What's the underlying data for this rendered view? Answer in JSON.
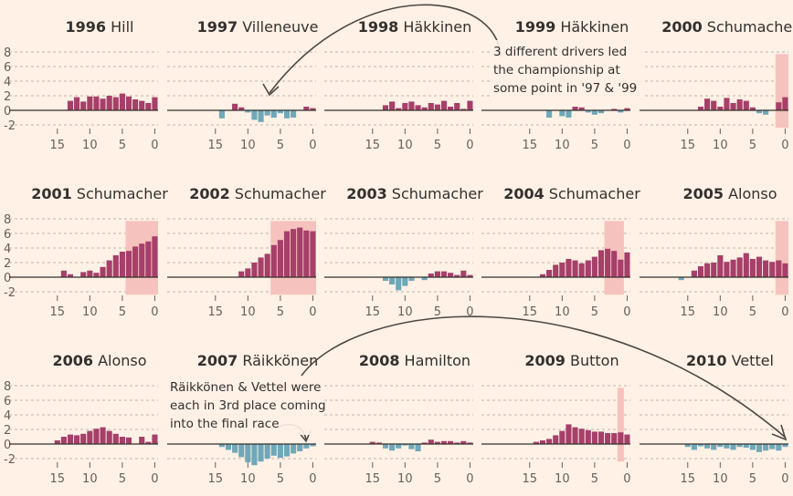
{
  "colors": {
    "pos": "#a63f69",
    "neg": "#6fa8b8",
    "highlight": "#f6c2bd",
    "background": "#fff1e5"
  },
  "chart_data": [
    {
      "type": "bar",
      "year": "1996",
      "champion": "Hill",
      "x": [
        17,
        16,
        15,
        14,
        13,
        12,
        11,
        10,
        9,
        8,
        7,
        6,
        5,
        4,
        3,
        2,
        1,
        0
      ],
      "values": [
        0,
        0,
        0,
        0,
        1.3,
        1.8,
        1.2,
        1.9,
        1.9,
        1.6,
        2.0,
        1.8,
        2.3,
        1.9,
        1.5,
        1.3,
        1.0,
        1.8
      ],
      "highlight": null,
      "ylim": [
        -2,
        8
      ],
      "yticks": [
        8,
        6,
        4,
        2,
        0,
        -2
      ],
      "xticks": [
        15,
        10,
        5,
        0
      ]
    },
    {
      "type": "bar",
      "year": "1997",
      "champion": "Villeneuve",
      "x": [
        17,
        16,
        15,
        14,
        13,
        12,
        11,
        10,
        9,
        8,
        7,
        6,
        5,
        4,
        3,
        2,
        1,
        0
      ],
      "values": [
        0,
        0,
        0,
        -1.1,
        0,
        0.9,
        0.4,
        -0.3,
        -1.3,
        -1.6,
        -0.7,
        -1.0,
        -0.4,
        -1.1,
        -1.0,
        0,
        0.5,
        0.3
      ],
      "highlight": null,
      "ylim": [
        -2,
        8
      ],
      "yticks": [
        8,
        6,
        4,
        2,
        0,
        -2
      ],
      "xticks": [
        15,
        10,
        5,
        0
      ]
    },
    {
      "type": "bar",
      "year": "1998",
      "champion": "Häkkinen",
      "x": [
        17,
        16,
        15,
        14,
        13,
        12,
        11,
        10,
        9,
        8,
        7,
        6,
        5,
        4,
        3,
        2,
        1,
        0
      ],
      "values": [
        0,
        0,
        0,
        0,
        0.7,
        1.2,
        0.3,
        1.0,
        1.2,
        0.7,
        0.4,
        1.0,
        0.8,
        1.3,
        0.5,
        1.0,
        0.2,
        1.3
      ],
      "highlight": null,
      "ylim": [
        -2,
        8
      ],
      "yticks": [
        8,
        6,
        4,
        2,
        0,
        -2
      ],
      "xticks": [
        15,
        10,
        5,
        0
      ]
    },
    {
      "type": "bar",
      "year": "1999",
      "champion": "Häkkinen",
      "x": [
        17,
        16,
        15,
        14,
        13,
        12,
        11,
        10,
        9,
        8,
        7,
        6,
        5,
        4,
        3,
        2,
        1,
        0
      ],
      "values": [
        0,
        0,
        0,
        0,
        0,
        -1.0,
        0,
        -0.8,
        -1.0,
        0.5,
        0.4,
        -0.3,
        -0.6,
        -0.4,
        0,
        0.2,
        -0.3,
        0.3
      ],
      "highlight": null,
      "ylim": [
        -2,
        8
      ],
      "yticks": [
        8,
        6,
        4,
        2,
        0,
        -2
      ],
      "xticks": [
        15,
        10,
        5,
        0
      ]
    },
    {
      "type": "bar",
      "year": "2000",
      "champion": "Schumacher",
      "x": [
        17,
        16,
        15,
        14,
        13,
        12,
        11,
        10,
        9,
        8,
        7,
        6,
        5,
        4,
        3,
        2,
        1,
        0
      ],
      "values": [
        0,
        0,
        0,
        0,
        0.5,
        1.6,
        1.3,
        0.5,
        1.7,
        1.0,
        1.5,
        1.3,
        0.4,
        -0.4,
        -0.6,
        0,
        1.1,
        1.8
      ],
      "highlight": [
        1,
        0
      ],
      "ylim": [
        -2,
        8
      ],
      "yticks": [
        8,
        6,
        4,
        2,
        0,
        -2
      ],
      "xticks": [
        15,
        10,
        5,
        0
      ]
    },
    {
      "type": "bar",
      "year": "2001",
      "champion": "Schumacher",
      "x": [
        17,
        16,
        15,
        14,
        13,
        12,
        11,
        10,
        9,
        8,
        7,
        6,
        5,
        4,
        3,
        2,
        1,
        0
      ],
      "values": [
        0,
        0,
        0,
        0.9,
        0.4,
        0,
        0.7,
        0.9,
        0.6,
        1.4,
        2.3,
        3.0,
        3.5,
        3.6,
        4.2,
        4.6,
        4.9,
        5.6
      ],
      "highlight": [
        4,
        0
      ],
      "ylim": [
        -2,
        8
      ],
      "yticks": [
        8,
        6,
        4,
        2,
        0,
        -2
      ],
      "xticks": [
        15,
        10,
        5,
        0
      ]
    },
    {
      "type": "bar",
      "year": "2002",
      "champion": "Schumacher",
      "x": [
        17,
        16,
        15,
        14,
        13,
        12,
        11,
        10,
        9,
        8,
        7,
        6,
        5,
        4,
        3,
        2,
        1,
        0
      ],
      "values": [
        0,
        0,
        0,
        0,
        0,
        0,
        0.8,
        1.2,
        2.0,
        2.7,
        3.2,
        4.4,
        5.1,
        6.3,
        6.6,
        6.8,
        6.4,
        6.3
      ],
      "highlight": [
        6,
        0
      ],
      "ylim": [
        -2,
        8
      ],
      "yticks": [
        8,
        6,
        4,
        2,
        0,
        -2
      ],
      "xticks": [
        15,
        10,
        5,
        0
      ]
    },
    {
      "type": "bar",
      "year": "2003",
      "champion": "Schumacher",
      "x": [
        17,
        16,
        15,
        14,
        13,
        12,
        11,
        10,
        9,
        8,
        7,
        6,
        5,
        4,
        3,
        2,
        1,
        0
      ],
      "values": [
        0,
        0,
        0,
        0,
        -0.5,
        -1.0,
        -1.8,
        -1.2,
        -0.5,
        0,
        -0.4,
        0.5,
        0.8,
        0.8,
        0.6,
        0.3,
        0.9,
        0.3
      ],
      "highlight": null,
      "ylim": [
        -2,
        8
      ],
      "yticks": [
        8,
        6,
        4,
        2,
        0,
        -2
      ],
      "xticks": [
        15,
        10,
        5,
        0
      ]
    },
    {
      "type": "bar",
      "year": "2004",
      "champion": "Schumacher",
      "x": [
        17,
        16,
        15,
        14,
        13,
        12,
        11,
        10,
        9,
        8,
        7,
        6,
        5,
        4,
        3,
        2,
        1,
        0
      ],
      "values": [
        0,
        0,
        0,
        0,
        0.4,
        1.0,
        1.7,
        2.0,
        2.5,
        2.3,
        1.9,
        2.3,
        2.8,
        3.7,
        3.9,
        3.6,
        2.4,
        3.4
      ],
      "highlight": [
        3,
        1
      ],
      "ylim": [
        -2,
        8
      ],
      "yticks": [
        8,
        6,
        4,
        2,
        0,
        -2
      ],
      "xticks": [
        15,
        10,
        5,
        0
      ]
    },
    {
      "type": "bar",
      "year": "2005",
      "champion": "Alonso",
      "x": [
        17,
        16,
        15,
        14,
        13,
        12,
        11,
        10,
        9,
        8,
        7,
        6,
        5,
        4,
        3,
        2,
        1,
        0
      ],
      "values": [
        0,
        -0.4,
        0,
        0.9,
        1.5,
        1.9,
        2.0,
        3.0,
        2.1,
        2.4,
        2.7,
        3.3,
        2.5,
        2.8,
        2.3,
        2.1,
        2.3,
        1.9
      ],
      "highlight": [
        1,
        0
      ],
      "ylim": [
        -2,
        8
      ],
      "yticks": [
        8,
        6,
        4,
        2,
        0,
        -2
      ],
      "xticks": [
        15,
        10,
        5,
        0
      ]
    },
    {
      "type": "bar",
      "year": "2006",
      "champion": "Alonso",
      "x": [
        17,
        16,
        15,
        14,
        13,
        12,
        11,
        10,
        9,
        8,
        7,
        6,
        5,
        4,
        3,
        2,
        1,
        0
      ],
      "values": [
        0,
        0,
        0.5,
        1.0,
        1.3,
        1.2,
        1.4,
        1.8,
        2.1,
        2.3,
        1.8,
        1.4,
        1.0,
        0.9,
        0,
        1.0,
        0.3,
        1.3
      ],
      "highlight": null,
      "ylim": [
        -2,
        8
      ],
      "yticks": [
        8,
        6,
        4,
        2,
        0,
        -2
      ],
      "xticks": [
        15,
        10,
        5,
        0
      ]
    },
    {
      "type": "bar",
      "year": "2007",
      "champion": "Räikkönen",
      "x": [
        17,
        16,
        15,
        14,
        13,
        12,
        11,
        10,
        9,
        8,
        7,
        6,
        5,
        4,
        3,
        2,
        1,
        0
      ],
      "values": [
        0,
        0,
        0,
        -0.4,
        -0.8,
        -1.2,
        -1.8,
        -2.5,
        -2.9,
        -2.4,
        -2.0,
        -1.6,
        -1.9,
        -1.7,
        -1.3,
        -1.0,
        -0.6,
        -0.3
      ],
      "highlight": null,
      "ylim": [
        -2,
        8
      ],
      "yticks": [
        8,
        6,
        4,
        2,
        0,
        -2
      ],
      "xticks": [
        15,
        10,
        5,
        0
      ]
    },
    {
      "type": "bar",
      "year": "2008",
      "champion": "Hamilton",
      "x": [
        17,
        16,
        15,
        14,
        13,
        12,
        11,
        10,
        9,
        8,
        7,
        6,
        5,
        4,
        3,
        2,
        1,
        0
      ],
      "values": [
        0,
        0,
        0.3,
        0.2,
        -0.6,
        -0.9,
        -0.6,
        -0.2,
        -0.7,
        -1.0,
        0.2,
        0.6,
        0.3,
        0.4,
        0.4,
        0.2,
        0.4,
        0.2
      ],
      "highlight": null,
      "ylim": [
        -2,
        8
      ],
      "yticks": [
        8,
        6,
        4,
        2,
        0,
        -2
      ],
      "xticks": [
        15,
        10,
        5,
        0
      ]
    },
    {
      "type": "bar",
      "year": "2009",
      "champion": "Button",
      "x": [
        17,
        16,
        15,
        14,
        13,
        12,
        11,
        10,
        9,
        8,
        7,
        6,
        5,
        4,
        3,
        2,
        1,
        0
      ],
      "values": [
        0,
        0,
        0,
        0.3,
        0.5,
        0.7,
        1.2,
        1.8,
        2.7,
        2.3,
        2.1,
        1.9,
        1.7,
        1.7,
        1.5,
        1.5,
        1.6,
        1.3
      ],
      "highlight": [
        1,
        1
      ],
      "ylim": [
        -2,
        8
      ],
      "yticks": [
        8,
        6,
        4,
        2,
        0,
        -2
      ],
      "xticks": [
        15,
        10,
        5,
        0
      ]
    },
    {
      "type": "bar",
      "year": "2010",
      "champion": "Vettel",
      "x": [
        17,
        16,
        15,
        14,
        13,
        12,
        11,
        10,
        9,
        8,
        7,
        6,
        5,
        4,
        3,
        2,
        1,
        0
      ],
      "values": [
        0,
        0,
        -0.4,
        -0.8,
        -0.3,
        -0.6,
        -0.8,
        -0.4,
        -0.6,
        -0.8,
        -0.4,
        -0.5,
        -0.8,
        -1.1,
        -0.9,
        -0.7,
        -0.9,
        -0.4
      ],
      "highlight": null,
      "ylim": [
        -2,
        8
      ],
      "yticks": [
        8,
        6,
        4,
        2,
        0,
        -2
      ],
      "xticks": [
        15,
        10,
        5,
        0
      ]
    }
  ],
  "annotations": {
    "note1": [
      "3 different drivers led",
      "the championship at",
      "some point in '97 & '99"
    ],
    "note2": [
      "Räikkönen & Vettel were",
      "each in 3rd place coming",
      "into the final race"
    ]
  }
}
